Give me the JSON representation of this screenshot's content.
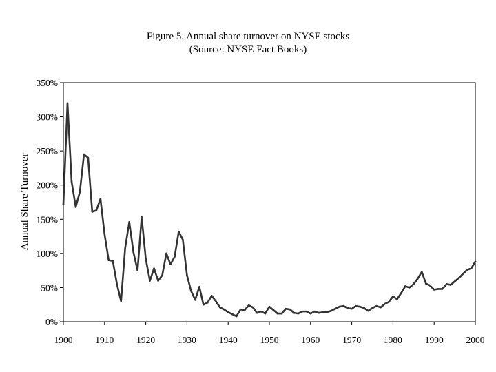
{
  "chart_data": {
    "type": "line",
    "title": "Figure 5.  Annual share turnover on NYSE stocks",
    "subtitle": "(Source:  NYSE Fact Books)",
    "xlabel": "",
    "ylabel": "Annual Share Turnover",
    "xlim": [
      1900,
      2000
    ],
    "ylim": [
      0,
      350
    ],
    "x_ticks": [
      "1900",
      "1910",
      "1920",
      "1930",
      "1940",
      "1950",
      "1960",
      "1970",
      "1980",
      "1990",
      "2000"
    ],
    "y_ticks": [
      "0%",
      "50%",
      "100%",
      "150%",
      "200%",
      "250%",
      "300%",
      "350%"
    ],
    "grid": false,
    "legend": "none",
    "line_color": "#333333",
    "series": [
      {
        "x": [
          1900,
          1901,
          1902,
          1903,
          1904,
          1905,
          1906,
          1907,
          1908,
          1909,
          1910,
          1911,
          1912,
          1913,
          1914,
          1915,
          1916,
          1917,
          1918,
          1919,
          1920,
          1921,
          1922,
          1923,
          1924,
          1925,
          1926,
          1927,
          1928,
          1929,
          1930,
          1931,
          1932,
          1933,
          1934,
          1935,
          1936,
          1937,
          1938,
          1939,
          1940,
          1941,
          1942,
          1943,
          1944,
          1945,
          1946,
          1947,
          1948,
          1949,
          1950,
          1951,
          1952,
          1953,
          1954,
          1955,
          1956,
          1957,
          1958,
          1959,
          1960,
          1961,
          1962,
          1963,
          1964,
          1965,
          1966,
          1967,
          1968,
          1969,
          1970,
          1971,
          1972,
          1973,
          1974,
          1975,
          1976,
          1977,
          1978,
          1979,
          1980,
          1981,
          1982,
          1983,
          1984,
          1985,
          1986,
          1987,
          1988,
          1989,
          1990,
          1991,
          1992,
          1993,
          1994,
          1995,
          1996,
          1997,
          1998,
          1999,
          2000
        ],
        "values": [
          172,
          320,
          205,
          168,
          190,
          245,
          240,
          161,
          163,
          180,
          128,
          90,
          89,
          55,
          30,
          108,
          146,
          102,
          75,
          153,
          92,
          60,
          78,
          60,
          68,
          100,
          84,
          95,
          132,
          120,
          68,
          45,
          32,
          51,
          25,
          28,
          38,
          30,
          21,
          18,
          14,
          11,
          8,
          18,
          17,
          24,
          21,
          13,
          15,
          12,
          22,
          17,
          12,
          12,
          19,
          18,
          13,
          12,
          15,
          15,
          12,
          15,
          13,
          14,
          14,
          16,
          19,
          22,
          23,
          20,
          19,
          23,
          22,
          20,
          16,
          20,
          23,
          21,
          26,
          29,
          37,
          33,
          42,
          52,
          50,
          55,
          63,
          73,
          56,
          53,
          47,
          48,
          48,
          55,
          54,
          59,
          64,
          70,
          76,
          78,
          88
        ]
      }
    ]
  }
}
